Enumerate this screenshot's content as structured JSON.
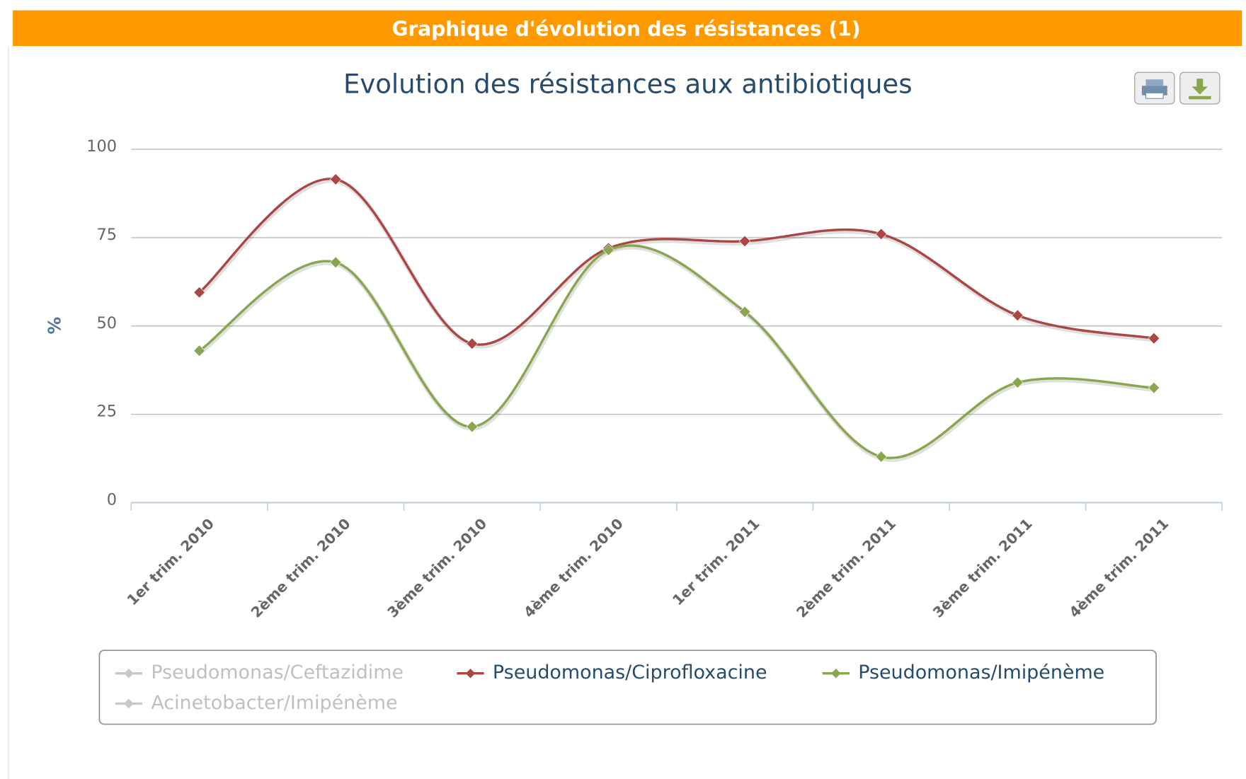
{
  "header": {
    "title": "Graphique d'évolution des résistances (1)"
  },
  "chart_data": {
    "type": "line",
    "title": "Evolution des résistances aux antibiotiques",
    "y_label": "%",
    "categories": [
      "1er trim. 2010",
      "2ème trim. 2010",
      "3ème trim. 2010",
      "4ème trim. 2010",
      "1er trim. 2011",
      "2ème trim. 2011",
      "3ème trim. 2011",
      "4ème trim. 2011"
    ],
    "series": [
      {
        "name": "Pseudomonas/Ceftazidime",
        "color": "#c8c8c8",
        "hidden": true
      },
      {
        "name": "Pseudomonas/Ciprofloxacine",
        "color": "#aa4643",
        "values": [
          59.5,
          91.5,
          45,
          72,
          74,
          76,
          53,
          46.5
        ]
      },
      {
        "name": "Pseudomonas/Imipénème",
        "color": "#89a54e",
        "values": [
          43,
          68,
          21.5,
          71.5,
          54,
          13,
          34,
          32.5
        ]
      },
      {
        "name": "Acinetobacter/Imipénème",
        "color": "#c8c8c8",
        "hidden": true
      }
    ],
    "ylim": [
      0,
      100
    ],
    "yticks": [
      0,
      25,
      50,
      75,
      100
    ],
    "grid": true,
    "smooth": true,
    "legend": "bottom"
  }
}
